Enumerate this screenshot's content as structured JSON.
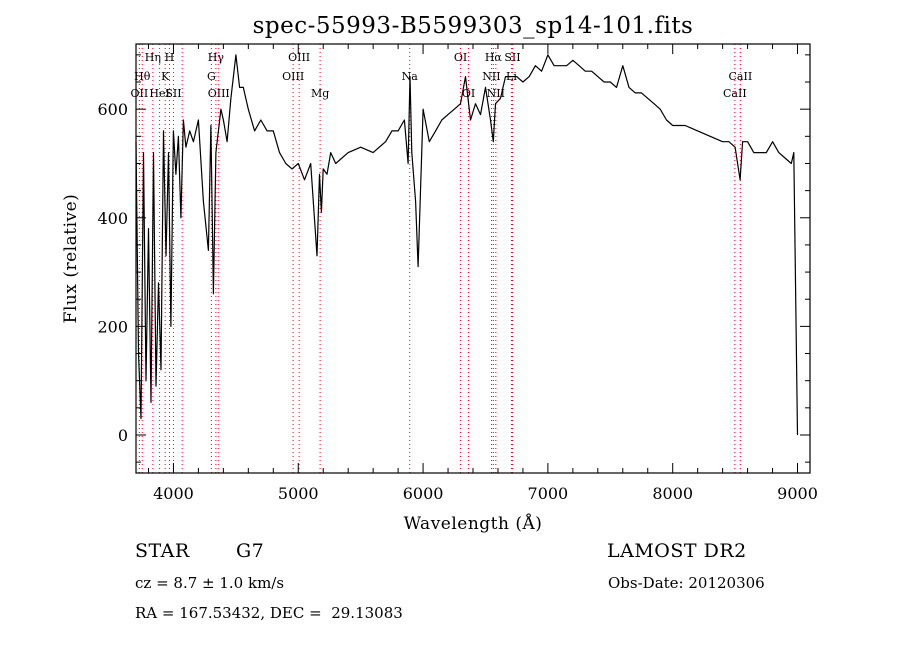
{
  "chart_data": {
    "type": "line",
    "title": "spec-55993-B5599303_sp14-101.fits",
    "xlabel": "Wavelength (Å)",
    "ylabel": "Flux (relative)",
    "xlim": [
      3700,
      9100
    ],
    "ylim": [
      -70,
      720
    ],
    "xticks": [
      4000,
      5000,
      6000,
      7000,
      8000,
      9000
    ],
    "yticks": [
      0,
      200,
      400,
      600
    ],
    "grid": false,
    "line_color": "#000000",
    "marker_color": "#ff0000",
    "series": [
      {
        "x": [
          3700,
          3720,
          3740,
          3760,
          3780,
          3800,
          3820,
          3840,
          3860,
          3880,
          3900,
          3920,
          3940,
          3960,
          3980,
          4000,
          4020,
          4040,
          4060,
          4080,
          4100,
          4130,
          4160,
          4200,
          4240,
          4280,
          4300,
          4320,
          4340,
          4360,
          4380,
          4400,
          4430,
          4460,
          4500,
          4530,
          4560,
          4600,
          4650,
          4700,
          4750,
          4800,
          4850,
          4900,
          4950,
          5000,
          5050,
          5100,
          5150,
          5170,
          5185,
          5200,
          5230,
          5260,
          5300,
          5400,
          5500,
          5600,
          5700,
          5750,
          5800,
          5850,
          5880,
          5895,
          5910,
          5940,
          5960,
          6000,
          6050,
          6100,
          6150,
          6200,
          6250,
          6300,
          6340,
          6380,
          6420,
          6460,
          6500,
          6540,
          6563,
          6580,
          6620,
          6660,
          6700,
          6750,
          6800,
          6850,
          6900,
          6950,
          7000,
          7050,
          7100,
          7150,
          7200,
          7250,
          7300,
          7350,
          7400,
          7450,
          7500,
          7550,
          7600,
          7650,
          7700,
          7750,
          7800,
          7850,
          7900,
          7950,
          8000,
          8100,
          8200,
          8300,
          8400,
          8450,
          8500,
          8540,
          8560,
          8600,
          8650,
          8700,
          8750,
          8800,
          8850,
          8900,
          8950,
          8970,
          9000
        ],
        "y": [
          540,
          150,
          30,
          520,
          100,
          380,
          60,
          520,
          90,
          280,
          120,
          560,
          330,
          520,
          200,
          560,
          480,
          550,
          400,
          580,
          530,
          560,
          540,
          580,
          430,
          340,
          570,
          260,
          520,
          560,
          600,
          580,
          540,
          620,
          700,
          640,
          640,
          600,
          560,
          580,
          560,
          560,
          520,
          500,
          490,
          500,
          470,
          500,
          330,
          480,
          410,
          490,
          480,
          520,
          500,
          520,
          530,
          520,
          540,
          560,
          560,
          580,
          500,
          660,
          520,
          430,
          310,
          600,
          540,
          560,
          580,
          590,
          600,
          610,
          660,
          580,
          610,
          590,
          640,
          580,
          540,
          610,
          620,
          660,
          660,
          660,
          650,
          660,
          680,
          670,
          700,
          680,
          680,
          680,
          690,
          680,
          670,
          670,
          660,
          650,
          650,
          640,
          680,
          640,
          630,
          630,
          620,
          610,
          600,
          580,
          570,
          570,
          560,
          550,
          540,
          540,
          530,
          470,
          540,
          540,
          520,
          520,
          520,
          540,
          520,
          510,
          500,
          520,
          0
        ]
      }
    ],
    "lines": [
      {
        "x": 3727,
        "label": "OII",
        "row": 2
      },
      {
        "x": 3750,
        "label": "Hθ",
        "row": 1
      },
      {
        "x": 3835,
        "label": "Hη",
        "row": 0
      },
      {
        "x": 3889,
        "label": "HeI",
        "row": 2
      },
      {
        "x": 3934,
        "label": "K",
        "row": 1
      },
      {
        "x": 3968,
        "label": "H",
        "row": 0
      },
      {
        "x": 4000,
        "label": "SII",
        "row": 2
      },
      {
        "x": 4070,
        "label": "",
        "row": 2
      },
      {
        "x": 4304,
        "label": "G",
        "row": 1
      },
      {
        "x": 4340,
        "label": "Hγ",
        "row": 0
      },
      {
        "x": 4363,
        "label": "OIII",
        "row": 2
      },
      {
        "x": 4959,
        "label": "OIII",
        "row": 1
      },
      {
        "x": 5007,
        "label": "OIII",
        "row": 0
      },
      {
        "x": 5175,
        "label": "Mg",
        "row": 2
      },
      {
        "x": 5893,
        "label": "Na",
        "row": 1
      },
      {
        "x": 6300,
        "label": "OI",
        "row": 0
      },
      {
        "x": 6364,
        "label": "OI",
        "row": 2
      },
      {
        "x": 6548,
        "label": "NII",
        "row": 1
      },
      {
        "x": 6563,
        "label": "Hα",
        "row": 0
      },
      {
        "x": 6583,
        "label": "NII",
        "row": 2
      },
      {
        "x": 6708,
        "label": "Li",
        "row": 1
      },
      {
        "x": 6716,
        "label": "SII",
        "row": 0
      },
      {
        "x": 8498,
        "label": "CaII",
        "row": 2
      },
      {
        "x": 8542,
        "label": "CaII",
        "row": 1
      }
    ]
  },
  "info": {
    "object_class": "STAR",
    "subclass": "G7",
    "survey": "LAMOST DR2",
    "cz": "cz = 8.7 ± 1.0 km/s",
    "obs_date": "Obs-Date: 20120306",
    "coords": "RA = 167.53432, DEC =  29.13083"
  }
}
